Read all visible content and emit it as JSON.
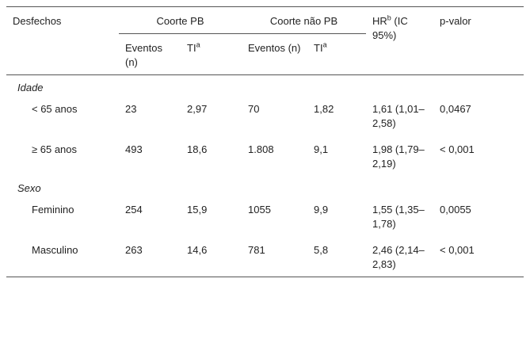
{
  "table": {
    "header": {
      "first": "Desfechos",
      "groups": [
        "Coorte PB",
        "Coorte não PB"
      ],
      "hr": {
        "text": "HR",
        "sup": "b",
        "rest": " (IC 95%)"
      },
      "p": "p-valor",
      "sub": [
        {
          "text": "Eventos (n)"
        },
        {
          "text": "TI",
          "sup": "a"
        },
        {
          "text": "Eventos (n)"
        },
        {
          "text": "TI",
          "sup": "a"
        }
      ]
    },
    "sections": [
      {
        "title": "Idade",
        "rows": [
          [
            "< 65 anos",
            "23",
            "2,97",
            "70",
            "1,82",
            "1,61 (1,01–2,58)",
            "0,0467"
          ],
          [
            "≥ 65 anos",
            "493",
            "18,6",
            "1.808",
            "9,1",
            "1,98 (1,79–2,19)",
            "< 0,001"
          ]
        ]
      },
      {
        "title": "Sexo",
        "rows": [
          [
            "Feminino",
            "254",
            "15,9",
            "1055",
            "9,9",
            "1,55 (1,35–1,78)",
            "0,0055"
          ],
          [
            "Masculino",
            "263",
            "14,6",
            "781",
            "5,8",
            "2,46 (2,14–2,83)",
            "< 0,001"
          ]
        ]
      }
    ]
  }
}
